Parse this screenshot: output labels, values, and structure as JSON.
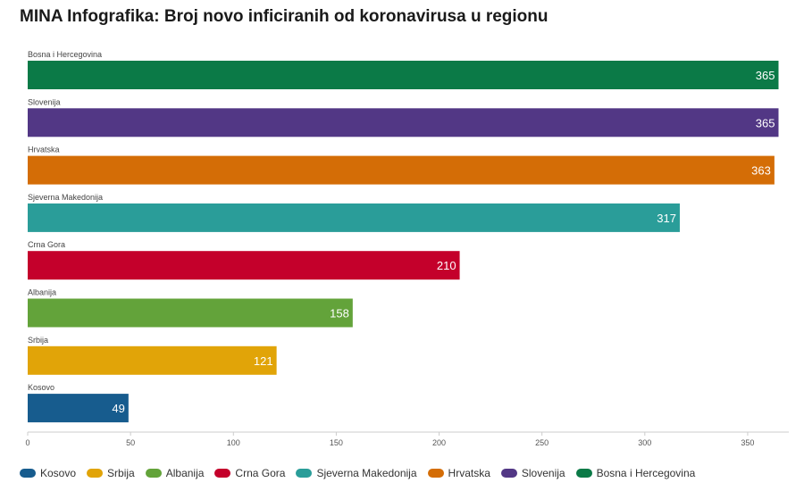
{
  "header": {
    "title": "MINA Infografika: Broj novo inficiranih od koronavirusa u regionu"
  },
  "chart_data": {
    "type": "bar",
    "orientation": "horizontal",
    "title": "MINA Infografika: Broj novo inficiranih od koronavirusa u regionu",
    "categories": [
      "Bosna i Hercegovina",
      "Slovenija",
      "Hrvatska",
      "Sjeverna Makedonija",
      "Crna Gora",
      "Albanija",
      "Srbija",
      "Kosovo"
    ],
    "values": [
      365,
      365,
      363,
      317,
      210,
      158,
      121,
      49
    ],
    "colors": [
      "#0b7a47",
      "#523785",
      "#d46d06",
      "#2a9d99",
      "#c4002b",
      "#63a33a",
      "#e1a408",
      "#175c8e"
    ],
    "xlim": [
      0,
      370
    ],
    "xticks": [
      0,
      50,
      100,
      150,
      200,
      250,
      300,
      350
    ],
    "xlabel": "",
    "ylabel": "",
    "grid": false,
    "legend_position": "bottom",
    "legend": [
      {
        "name": "Kosovo",
        "color": "#175c8e"
      },
      {
        "name": "Srbija",
        "color": "#e1a408"
      },
      {
        "name": "Albanija",
        "color": "#63a33a"
      },
      {
        "name": "Crna Gora",
        "color": "#c4002b"
      },
      {
        "name": "Sjeverna Makedonija",
        "color": "#2a9d99"
      },
      {
        "name": "Hrvatska",
        "color": "#d46d06"
      },
      {
        "name": "Slovenija",
        "color": "#523785"
      },
      {
        "name": "Bosna i Hercegovina",
        "color": "#0b7a47"
      }
    ]
  }
}
